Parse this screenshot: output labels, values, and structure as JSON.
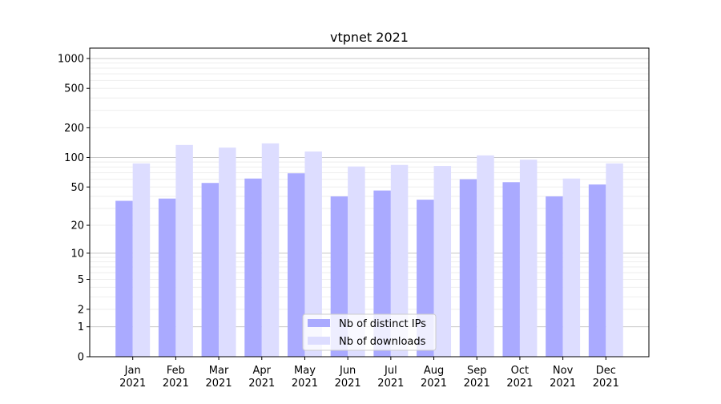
{
  "chart_data": {
    "type": "bar",
    "title": "vtpnet 2021",
    "xlabel": "",
    "ylabel": "",
    "yscale": "log(1+y)",
    "ylim": [
      0,
      1300
    ],
    "yticks": [
      0,
      1,
      2,
      5,
      10,
      20,
      50,
      100,
      200,
      500,
      1000
    ],
    "grid": true,
    "legend_position": "lower-center",
    "categories": [
      "Jan\n2021",
      "Feb\n2021",
      "Mar\n2021",
      "Apr\n2021",
      "May\n2021",
      "Jun\n2021",
      "Jul\n2021",
      "Aug\n2021",
      "Sep\n2021",
      "Oct\n2021",
      "Nov\n2021",
      "Dec\n2021"
    ],
    "series": [
      {
        "name": "Nb of distinct IPs",
        "color": "#aaaaff",
        "values": [
          36,
          38,
          55,
          61,
          69,
          40,
          46,
          37,
          60,
          56,
          40,
          53
        ]
      },
      {
        "name": "Nb of downloads",
        "color": "#ddddff",
        "values": [
          87,
          134,
          126,
          139,
          115,
          81,
          84,
          82,
          105,
          95,
          61,
          87
        ]
      }
    ]
  }
}
